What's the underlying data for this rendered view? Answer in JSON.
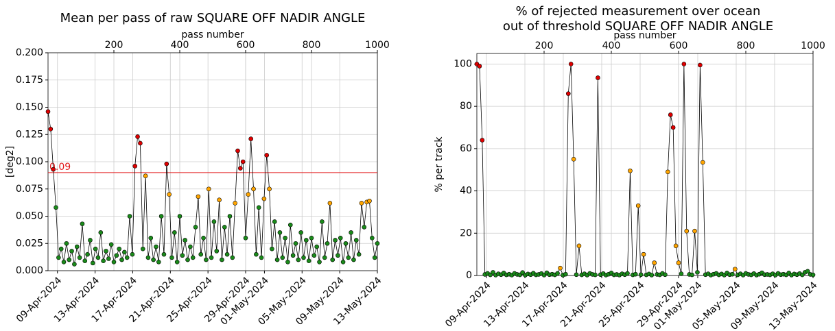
{
  "chart_data": [
    {
      "type": "scatter-line",
      "title": "Mean per pass of raw SQUARE OFF NADIR ANGLE",
      "x2label": "pass number",
      "ylabel": "[deg2]",
      "xlim": [
        0,
        1000
      ],
      "ylim": [
        0,
        0.2
      ],
      "x2ticks": [
        200,
        400,
        600,
        800,
        1000
      ],
      "xticks": [
        {
          "value": 28.6,
          "label": "09-Apr-2024"
        },
        {
          "value": 142.9,
          "label": "13-Apr-2024"
        },
        {
          "value": 257.1,
          "label": "17-Apr-2024"
        },
        {
          "value": 371.4,
          "label": "21-Apr-2024"
        },
        {
          "value": 485.7,
          "label": "25-Apr-2024"
        },
        {
          "value": 600,
          "label": "29-Apr-2024"
        },
        {
          "value": 657.1,
          "label": "01-May-2024"
        },
        {
          "value": 771.4,
          "label": "05-May-2024"
        },
        {
          "value": 885.7,
          "label": "09-May-2024"
        },
        {
          "value": 1000,
          "label": "13-May-2024"
        }
      ],
      "yticks": [
        {
          "value": 0,
          "label": "0.000"
        },
        {
          "value": 0.025,
          "label": "0.025"
        },
        {
          "value": 0.05,
          "label": "0.050"
        },
        {
          "value": 0.075,
          "label": "0.075"
        },
        {
          "value": 0.1,
          "label": "0.100"
        },
        {
          "value": 0.125,
          "label": "0.125"
        },
        {
          "value": 0.15,
          "label": "0.150"
        },
        {
          "value": 0.175,
          "label": "0.175"
        },
        {
          "value": 0.2,
          "label": "0.200"
        }
      ],
      "grid": true,
      "hline": 0.09,
      "hline_color": "#e31a1c",
      "line_color": "#000000",
      "color": "#1a8a1a",
      "color_levels": [
        {
          "above": 0.09,
          "color": "#e00000"
        },
        {
          "above": 0.06,
          "color": "#ffa500"
        }
      ],
      "x": [
        0,
        8,
        16,
        24,
        32,
        40,
        48,
        56,
        64,
        72,
        80,
        88,
        96,
        104,
        112,
        120,
        128,
        136,
        144,
        152,
        160,
        168,
        176,
        184,
        192,
        200,
        208,
        216,
        224,
        232,
        240,
        248,
        256,
        264,
        272,
        280,
        288,
        296,
        304,
        312,
        320,
        328,
        336,
        344,
        352,
        360,
        368,
        376,
        384,
        392,
        400,
        408,
        416,
        424,
        432,
        440,
        448,
        456,
        464,
        472,
        480,
        488,
        496,
        504,
        512,
        520,
        528,
        536,
        544,
        552,
        560,
        568,
        576,
        584,
        592,
        600,
        608,
        616,
        624,
        632,
        640,
        648,
        656,
        664,
        672,
        680,
        688,
        696,
        704,
        712,
        720,
        728,
        736,
        744,
        752,
        760,
        768,
        776,
        784,
        792,
        800,
        808,
        816,
        824,
        832,
        840,
        848,
        856,
        864,
        872,
        880,
        888,
        896,
        904,
        912,
        920,
        928,
        936,
        944,
        952,
        960,
        968,
        976,
        984,
        992,
        1000
      ],
      "values": [
        0.146,
        0.13,
        0.093,
        0.058,
        0.012,
        0.02,
        0.008,
        0.025,
        0.01,
        0.018,
        0.006,
        0.022,
        0.012,
        0.043,
        0.009,
        0.015,
        0.028,
        0.007,
        0.02,
        0.012,
        0.035,
        0.009,
        0.018,
        0.011,
        0.024,
        0.008,
        0.014,
        0.02,
        0.01,
        0.017,
        0.012,
        0.05,
        0.015,
        0.096,
        0.123,
        0.117,
        0.02,
        0.087,
        0.012,
        0.03,
        0.01,
        0.022,
        0.008,
        0.05,
        0.015,
        0.098,
        0.07,
        0.012,
        0.035,
        0.008,
        0.05,
        0.014,
        0.028,
        0.01,
        0.022,
        0.012,
        0.04,
        0.068,
        0.015,
        0.03,
        0.01,
        0.075,
        0.012,
        0.045,
        0.018,
        0.065,
        0.01,
        0.04,
        0.015,
        0.05,
        0.012,
        0.062,
        0.11,
        0.094,
        0.1,
        0.03,
        0.07,
        0.121,
        0.075,
        0.015,
        0.058,
        0.012,
        0.066,
        0.106,
        0.075,
        0.02,
        0.045,
        0.01,
        0.035,
        0.012,
        0.03,
        0.008,
        0.042,
        0.014,
        0.025,
        0.01,
        0.035,
        0.012,
        0.028,
        0.009,
        0.03,
        0.014,
        0.022,
        0.008,
        0.045,
        0.012,
        0.025,
        0.062,
        0.01,
        0.028,
        0.014,
        0.03,
        0.008,
        0.025,
        0.012,
        0.035,
        0.01,
        0.028,
        0.015,
        0.062,
        0.04,
        0.063,
        0.064,
        0.03,
        0.012,
        0.025
      ]
    },
    {
      "type": "scatter-line",
      "title": [
        "% of rejected measurement over ocean",
        "out of threshold SQUARE OFF NADIR ANGLE"
      ],
      "x2label": "pass number",
      "ylabel": "% per track",
      "xlim": [
        0,
        1000
      ],
      "ylim": [
        0,
        105
      ],
      "x2ticks": [
        200,
        400,
        600,
        800,
        1000
      ],
      "xticks": [
        {
          "value": 28.6,
          "label": "09-Apr-2024"
        },
        {
          "value": 142.9,
          "label": "13-Apr-2024"
        },
        {
          "value": 257.1,
          "label": "17-Apr-2024"
        },
        {
          "value": 371.4,
          "label": "21-Apr-2024"
        },
        {
          "value": 485.7,
          "label": "25-Apr-2024"
        },
        {
          "value": 600,
          "label": "29-Apr-2024"
        },
        {
          "value": 657.1,
          "label": "01-May-2024"
        },
        {
          "value": 771.4,
          "label": "05-May-2024"
        },
        {
          "value": 885.7,
          "label": "09-May-2024"
        },
        {
          "value": 1000,
          "label": "13-May-2024"
        }
      ],
      "yticks": [
        0,
        20,
        40,
        60,
        80,
        100
      ],
      "grid": true,
      "line_color": "#000000",
      "color": "#1a8a1a",
      "color_levels": [
        {
          "above": 60,
          "color": "#e00000"
        },
        {
          "above": 2.5,
          "color": "#ffa500"
        }
      ],
      "x": [
        0,
        8,
        16,
        24,
        32,
        40,
        48,
        56,
        64,
        72,
        80,
        88,
        96,
        104,
        112,
        120,
        128,
        136,
        144,
        152,
        160,
        168,
        176,
        184,
        192,
        200,
        208,
        216,
        224,
        232,
        240,
        248,
        256,
        264,
        272,
        280,
        288,
        296,
        304,
        312,
        320,
        328,
        336,
        344,
        352,
        360,
        368,
        376,
        384,
        392,
        400,
        408,
        416,
        424,
        432,
        440,
        448,
        456,
        464,
        472,
        480,
        488,
        496,
        504,
        512,
        520,
        528,
        536,
        544,
        552,
        560,
        568,
        576,
        584,
        592,
        600,
        608,
        616,
        624,
        632,
        640,
        648,
        656,
        664,
        672,
        680,
        688,
        696,
        704,
        712,
        720,
        728,
        736,
        744,
        752,
        760,
        768,
        776,
        784,
        792,
        800,
        808,
        816,
        824,
        832,
        840,
        848,
        856,
        864,
        872,
        880,
        888,
        896,
        904,
        912,
        920,
        928,
        936,
        944,
        952,
        960,
        968,
        976,
        984,
        992,
        1000
      ],
      "values": [
        100,
        99,
        64,
        0.5,
        1,
        0.3,
        1.5,
        0.2,
        0.8,
        0.4,
        1.2,
        0.3,
        0.6,
        0.2,
        1,
        0.5,
        0.3,
        1.4,
        0.2,
        0.7,
        0.4,
        1.1,
        0.3,
        0.5,
        0.9,
        0.2,
        1.3,
        0.4,
        0.6,
        0.3,
        1,
        3.5,
        0.2,
        0.6,
        86,
        100,
        55,
        0.4,
        14,
        0.3,
        0.8,
        0.2,
        1,
        0.5,
        0.3,
        93.5,
        0.4,
        0.9,
        0.2,
        0.6,
        1.2,
        0.3,
        0.5,
        0.2,
        0.8,
        0.4,
        1,
        49.5,
        0.3,
        0.6,
        33,
        0.4,
        10,
        0.3,
        0.7,
        0.2,
        6,
        0.5,
        0.3,
        1,
        0.4,
        49,
        76,
        70,
        14,
        6,
        0.8,
        100,
        21,
        0.5,
        0.3,
        21,
        1.5,
        99.5,
        53.5,
        0.4,
        0.8,
        0.2,
        0.6,
        1,
        0.3,
        0.7,
        0.2,
        1.2,
        0.4,
        0.6,
        3,
        0.3,
        0.8,
        0.2,
        1,
        0.5,
        0.3,
        0.9,
        0.2,
        0.6,
        1.3,
        0.4,
        0.5,
        0.3,
        0.8,
        0.2,
        1,
        0.4,
        0.6,
        0.3,
        1.2,
        0.2,
        0.7,
        0.4,
        0.9,
        0.3,
        1.5,
        2,
        0.5,
        0.3
      ]
    }
  ]
}
